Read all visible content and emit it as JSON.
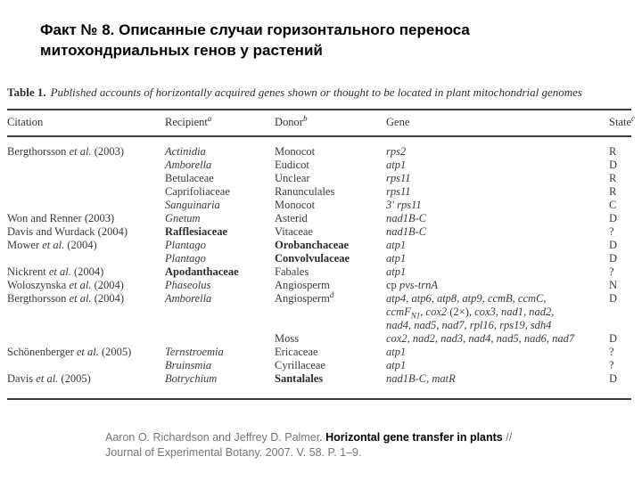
{
  "slide": {
    "title_line1": "Факт № 8. Описанные случаи горизонтального переноса",
    "title_line2": "митохондриальных генов у растений"
  },
  "table": {
    "caption_label": "Table 1.",
    "caption_text": "Published accounts of horizontally acquired genes shown or thought to be located in plant mitochondrial genomes",
    "columns": [
      {
        "label": "Citation",
        "sup": ""
      },
      {
        "label": "Recipient",
        "sup": "a"
      },
      {
        "label": "Donor",
        "sup": "b"
      },
      {
        "label": "Gene",
        "sup": ""
      },
      {
        "label": "State",
        "sup": "c"
      }
    ],
    "rows": [
      {
        "citation": [
          [
            "r",
            "Bergthorsson "
          ],
          [
            "i",
            "et al."
          ],
          [
            "r",
            " (2003)"
          ]
        ],
        "recipient": [
          [
            "i",
            "Actinidia"
          ]
        ],
        "donor": [
          [
            "r",
            "Monocot"
          ]
        ],
        "gene": [
          [
            [
              "i",
              "rps2"
            ]
          ]
        ],
        "state": "R"
      },
      {
        "citation": [],
        "recipient": [
          [
            "i",
            "Amborella"
          ]
        ],
        "donor": [
          [
            "r",
            "Eudicot"
          ]
        ],
        "gene": [
          [
            [
              "i",
              "atp1"
            ]
          ]
        ],
        "state": "D"
      },
      {
        "citation": [],
        "recipient": [
          [
            "r",
            "Betulaceae"
          ]
        ],
        "donor": [
          [
            "r",
            "Unclear"
          ]
        ],
        "gene": [
          [
            [
              "i",
              "rps11"
            ]
          ]
        ],
        "state": "R"
      },
      {
        "citation": [],
        "recipient": [
          [
            "r",
            "Caprifoliaceae"
          ]
        ],
        "donor": [
          [
            "r",
            "Ranunculales"
          ]
        ],
        "gene": [
          [
            [
              "i",
              "rps11"
            ]
          ]
        ],
        "state": "R"
      },
      {
        "citation": [],
        "recipient": [
          [
            "i",
            "Sanguinaria"
          ]
        ],
        "donor": [
          [
            "r",
            "Monocot"
          ]
        ],
        "gene": [
          [
            [
              "i",
              "3′ rps11"
            ]
          ]
        ],
        "state": "C"
      },
      {
        "citation": [
          [
            "r",
            "Won and Renner (2003)"
          ]
        ],
        "recipient": [
          [
            "i",
            "Gnetum"
          ]
        ],
        "donor": [
          [
            "r",
            "Asterid"
          ]
        ],
        "gene": [
          [
            [
              "i",
              "nad1B-C"
            ]
          ]
        ],
        "state": "D"
      },
      {
        "citation": [
          [
            "r",
            "Davis and Wurdack (2004)"
          ]
        ],
        "recipient": [
          [
            "b",
            "Rafflesiaceae"
          ]
        ],
        "donor": [
          [
            "r",
            "Vitaceae"
          ]
        ],
        "gene": [
          [
            [
              "i",
              "nad1B-C"
            ]
          ]
        ],
        "state": "?"
      },
      {
        "citation": [
          [
            "r",
            "Mower "
          ],
          [
            "i",
            "et al."
          ],
          [
            "r",
            " (2004)"
          ]
        ],
        "recipient": [
          [
            "i",
            "Plantago"
          ]
        ],
        "donor": [
          [
            "b",
            "Orobanchaceae"
          ]
        ],
        "gene": [
          [
            [
              "i",
              "atp1"
            ]
          ]
        ],
        "state": "D"
      },
      {
        "citation": [],
        "recipient": [
          [
            "i",
            "Plantago"
          ]
        ],
        "donor": [
          [
            "b",
            "Convolvulaceae"
          ]
        ],
        "gene": [
          [
            [
              "i",
              "atp1"
            ]
          ]
        ],
        "state": "D"
      },
      {
        "citation": [
          [
            "r",
            "Nickrent "
          ],
          [
            "i",
            "et al."
          ],
          [
            "r",
            " (2004)"
          ]
        ],
        "recipient": [
          [
            "b",
            "Apodanthaceae"
          ]
        ],
        "donor": [
          [
            "r",
            "Fabales"
          ]
        ],
        "gene": [
          [
            [
              "i",
              "atp1"
            ]
          ]
        ],
        "state": "?"
      },
      {
        "citation": [
          [
            "r",
            "Woloszynska "
          ],
          [
            "i",
            "et al."
          ],
          [
            "r",
            " (2004)"
          ]
        ],
        "recipient": [
          [
            "i",
            "Phaseolus"
          ]
        ],
        "donor": [
          [
            "r",
            "Angiosperm"
          ]
        ],
        "gene": [
          [
            [
              "r",
              "cp "
            ],
            [
              "i",
              "pvs-trnA"
            ]
          ]
        ],
        "state": "N"
      },
      {
        "citation": [
          [
            "r",
            "Bergthorsson "
          ],
          [
            "i",
            "et al."
          ],
          [
            "r",
            " (2004)"
          ]
        ],
        "recipient": [
          [
            "i",
            "Amborella"
          ]
        ],
        "donor": [
          [
            "r",
            "Angiosperm"
          ],
          [
            "sup",
            "d"
          ]
        ],
        "gene": [
          [
            [
              "i",
              "atp4, atp6, atp8, atp9, ccmB, ccmC,"
            ]
          ],
          [
            [
              "i",
              "ccmF"
            ],
            [
              "sub",
              "N1"
            ],
            [
              "r",
              ", "
            ],
            [
              "i",
              "cox2"
            ],
            [
              "r",
              " (2×), "
            ],
            [
              "i",
              "cox3, nad1, nad2,"
            ]
          ],
          [
            [
              "i",
              "nad4, nad5, nad7, rpl16, rps19, sdh4"
            ]
          ]
        ],
        "state": "D"
      },
      {
        "citation": [],
        "recipient": [],
        "donor": [
          [
            "r",
            "Moss"
          ]
        ],
        "gene": [
          [
            [
              "i",
              "cox2, nad2, nad3, nad4, nad5, nad6, nad7"
            ]
          ]
        ],
        "state": "D"
      },
      {
        "citation": [
          [
            "r",
            "Schönenberger "
          ],
          [
            "i",
            "et al."
          ],
          [
            "r",
            " (2005)"
          ]
        ],
        "recipient": [
          [
            "i",
            "Ternstroemia"
          ]
        ],
        "donor": [
          [
            "r",
            "Ericaceae"
          ]
        ],
        "gene": [
          [
            [
              "i",
              "atp1"
            ]
          ]
        ],
        "state": "?"
      },
      {
        "citation": [],
        "recipient": [
          [
            "i",
            "Bruinsmia"
          ]
        ],
        "donor": [
          [
            "r",
            "Cyrillaceae"
          ]
        ],
        "gene": [
          [
            [
              "i",
              "atp1"
            ]
          ]
        ],
        "state": "?"
      },
      {
        "citation": [
          [
            "r",
            "Davis "
          ],
          [
            "i",
            "et al."
          ],
          [
            "r",
            " (2005)"
          ]
        ],
        "recipient": [
          [
            "i",
            "Botrychium"
          ]
        ],
        "donor": [
          [
            "b",
            "Santalales"
          ]
        ],
        "gene": [
          [
            [
              "i",
              "nad1B-C, matR"
            ]
          ]
        ],
        "state": "D"
      }
    ]
  },
  "footer": {
    "authors": "Aaron O. Richardson and Jeffrey D. Palmer. ",
    "title_bold": "Horizontal gene transfer in plants",
    "after_title": " //",
    "line2": "Journal of Experimental Botany. 2007. V. 58. P. 1–9."
  }
}
